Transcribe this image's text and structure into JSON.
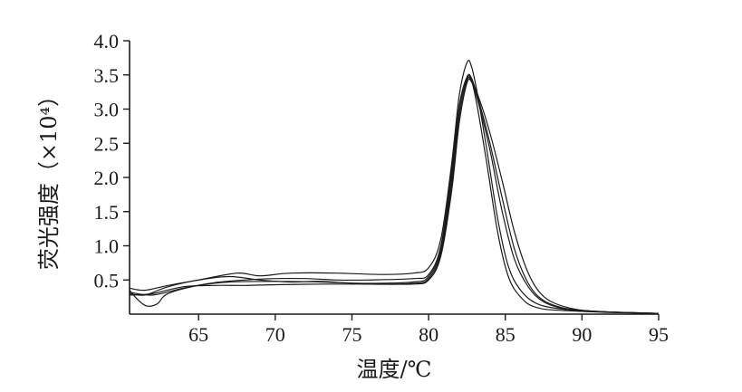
{
  "chart_data": {
    "type": "line",
    "title": "",
    "xlabel": "温度/℃",
    "ylabel": "荧光强度（×10⁴）",
    "xlim": [
      60.5,
      95
    ],
    "ylim": [
      0,
      4.0
    ],
    "xticks": [
      65,
      70,
      75,
      80,
      85,
      90,
      95
    ],
    "yticks": [
      0.5,
      1.0,
      1.5,
      2.0,
      2.5,
      3.0,
      3.5,
      4.0
    ],
    "grid": false,
    "series": [
      {
        "values": [
          [
            60.5,
            0.38
          ],
          [
            61.5,
            0.35
          ],
          [
            63,
            0.42
          ],
          [
            65,
            0.5
          ],
          [
            67.5,
            0.6
          ],
          [
            69,
            0.56
          ],
          [
            71,
            0.6
          ],
          [
            74,
            0.6
          ],
          [
            77,
            0.58
          ],
          [
            79,
            0.6
          ],
          [
            80,
            0.68
          ],
          [
            80.8,
            1.1
          ],
          [
            81.5,
            2.2
          ],
          [
            82,
            3.2
          ],
          [
            82.5,
            3.68
          ],
          [
            82.8,
            3.62
          ],
          [
            83.2,
            3.2
          ],
          [
            83.8,
            2.4
          ],
          [
            84.5,
            1.4
          ],
          [
            85.2,
            0.7
          ],
          [
            86,
            0.35
          ],
          [
            87,
            0.16
          ],
          [
            88.5,
            0.08
          ],
          [
            91,
            0.04
          ],
          [
            95,
            0.01
          ]
        ]
      },
      {
        "values": [
          [
            60.5,
            0.35
          ],
          [
            61,
            0.22
          ],
          [
            61.6,
            0.12
          ],
          [
            62.3,
            0.15
          ],
          [
            63,
            0.3
          ],
          [
            65,
            0.42
          ],
          [
            67,
            0.47
          ],
          [
            70,
            0.48
          ],
          [
            73,
            0.47
          ],
          [
            76,
            0.45
          ],
          [
            79,
            0.47
          ],
          [
            80,
            0.55
          ],
          [
            80.8,
            0.95
          ],
          [
            81.5,
            2.0
          ],
          [
            82,
            3.0
          ],
          [
            82.5,
            3.45
          ],
          [
            82.8,
            3.42
          ],
          [
            83.2,
            3.0
          ],
          [
            83.8,
            2.2
          ],
          [
            84.5,
            1.2
          ],
          [
            85.2,
            0.55
          ],
          [
            86,
            0.25
          ],
          [
            87,
            0.1
          ],
          [
            89,
            0.05
          ],
          [
            95,
            0.01
          ]
        ]
      },
      {
        "values": [
          [
            60.5,
            0.32
          ],
          [
            62,
            0.28
          ],
          [
            64,
            0.38
          ],
          [
            66,
            0.46
          ],
          [
            68,
            0.5
          ],
          [
            70,
            0.52
          ],
          [
            72,
            0.52
          ],
          [
            74,
            0.5
          ],
          [
            76,
            0.5
          ],
          [
            79,
            0.52
          ],
          [
            80,
            0.58
          ],
          [
            80.8,
            1.0
          ],
          [
            81.5,
            2.1
          ],
          [
            82,
            3.05
          ],
          [
            82.5,
            3.47
          ],
          [
            82.8,
            3.45
          ],
          [
            83.3,
            3.1
          ],
          [
            84,
            2.5
          ],
          [
            84.8,
            1.7
          ],
          [
            85.6,
            0.95
          ],
          [
            86.5,
            0.45
          ],
          [
            87.5,
            0.2
          ],
          [
            89,
            0.08
          ],
          [
            91,
            0.04
          ],
          [
            95,
            0.01
          ]
        ]
      },
      {
        "values": [
          [
            60.5,
            0.3
          ],
          [
            61.5,
            0.28
          ],
          [
            63,
            0.4
          ],
          [
            65,
            0.5
          ],
          [
            67,
            0.55
          ],
          [
            69,
            0.5
          ],
          [
            71,
            0.47
          ],
          [
            73,
            0.48
          ],
          [
            76,
            0.44
          ],
          [
            79,
            0.45
          ],
          [
            80,
            0.52
          ],
          [
            80.8,
            0.9
          ],
          [
            81.5,
            1.9
          ],
          [
            82,
            2.9
          ],
          [
            82.5,
            3.42
          ],
          [
            82.8,
            3.4
          ],
          [
            83.3,
            3.05
          ],
          [
            84,
            2.4
          ],
          [
            84.8,
            1.5
          ],
          [
            85.6,
            0.8
          ],
          [
            86.5,
            0.4
          ],
          [
            87.5,
            0.18
          ],
          [
            89,
            0.07
          ],
          [
            91,
            0.03
          ],
          [
            95,
            0.01
          ]
        ]
      },
      {
        "values": [
          [
            60.5,
            0.28
          ],
          [
            62,
            0.3
          ],
          [
            64,
            0.4
          ],
          [
            66,
            0.42
          ],
          [
            68,
            0.42
          ],
          [
            70,
            0.43
          ],
          [
            73,
            0.44
          ],
          [
            76,
            0.44
          ],
          [
            79,
            0.44
          ],
          [
            80,
            0.5
          ],
          [
            80.8,
            0.85
          ],
          [
            81.5,
            1.8
          ],
          [
            82,
            2.8
          ],
          [
            82.5,
            3.38
          ],
          [
            82.8,
            3.4
          ],
          [
            83.3,
            3.15
          ],
          [
            84,
            2.65
          ],
          [
            84.8,
            1.95
          ],
          [
            85.6,
            1.2
          ],
          [
            86.5,
            0.6
          ],
          [
            87.5,
            0.26
          ],
          [
            89,
            0.1
          ],
          [
            91,
            0.04
          ],
          [
            95,
            0.01
          ]
        ]
      }
    ]
  }
}
